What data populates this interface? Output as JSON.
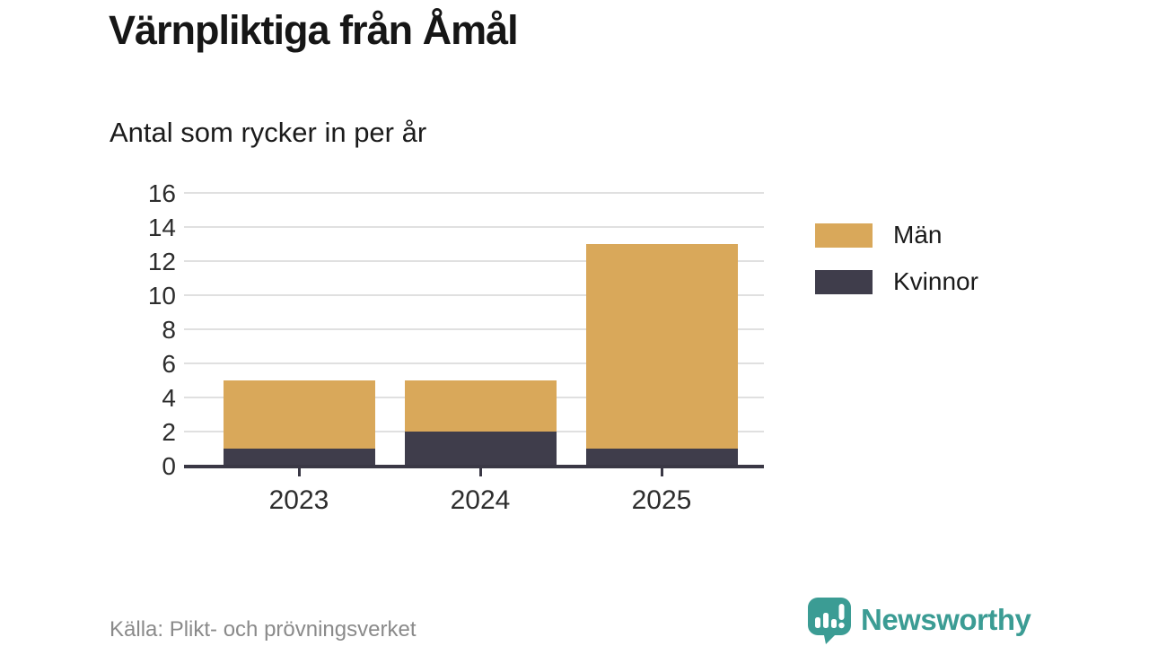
{
  "title": "Värnpliktiga från Åmål",
  "subtitle": "Antal som rycker in per år",
  "source": "Källa: Plikt- och prövningsverket",
  "brand": {
    "name": "Newsworthy",
    "color": "#3b9c94"
  },
  "colors": {
    "men": "#d9a85a",
    "women": "#3f3d4b",
    "grid": "#e0e0e0",
    "axis": "#3a3845",
    "title_text": "#161616",
    "muted_text": "#8a8a8a"
  },
  "legend": [
    {
      "label": "Män",
      "color": "#d9a85a"
    },
    {
      "label": "Kvinnor",
      "color": "#3f3d4b"
    }
  ],
  "chart_data": {
    "type": "bar",
    "stacked": true,
    "title": "Värnpliktiga från Åmål",
    "subtitle": "Antal som rycker in per år",
    "categories": [
      "2023",
      "2024",
      "2025"
    ],
    "series": [
      {
        "name": "Män",
        "color": "#d9a85a",
        "values": [
          4,
          3,
          12
        ]
      },
      {
        "name": "Kvinnor",
        "color": "#3f3d4b",
        "values": [
          1,
          2,
          1
        ]
      }
    ],
    "totals": [
      5,
      5,
      13
    ],
    "xlabel": "",
    "ylabel": "",
    "ylim": [
      0,
      16
    ],
    "yticks": [
      0,
      2,
      4,
      6,
      8,
      10,
      12,
      14,
      16
    ],
    "grid": true,
    "legend_position": "right"
  }
}
